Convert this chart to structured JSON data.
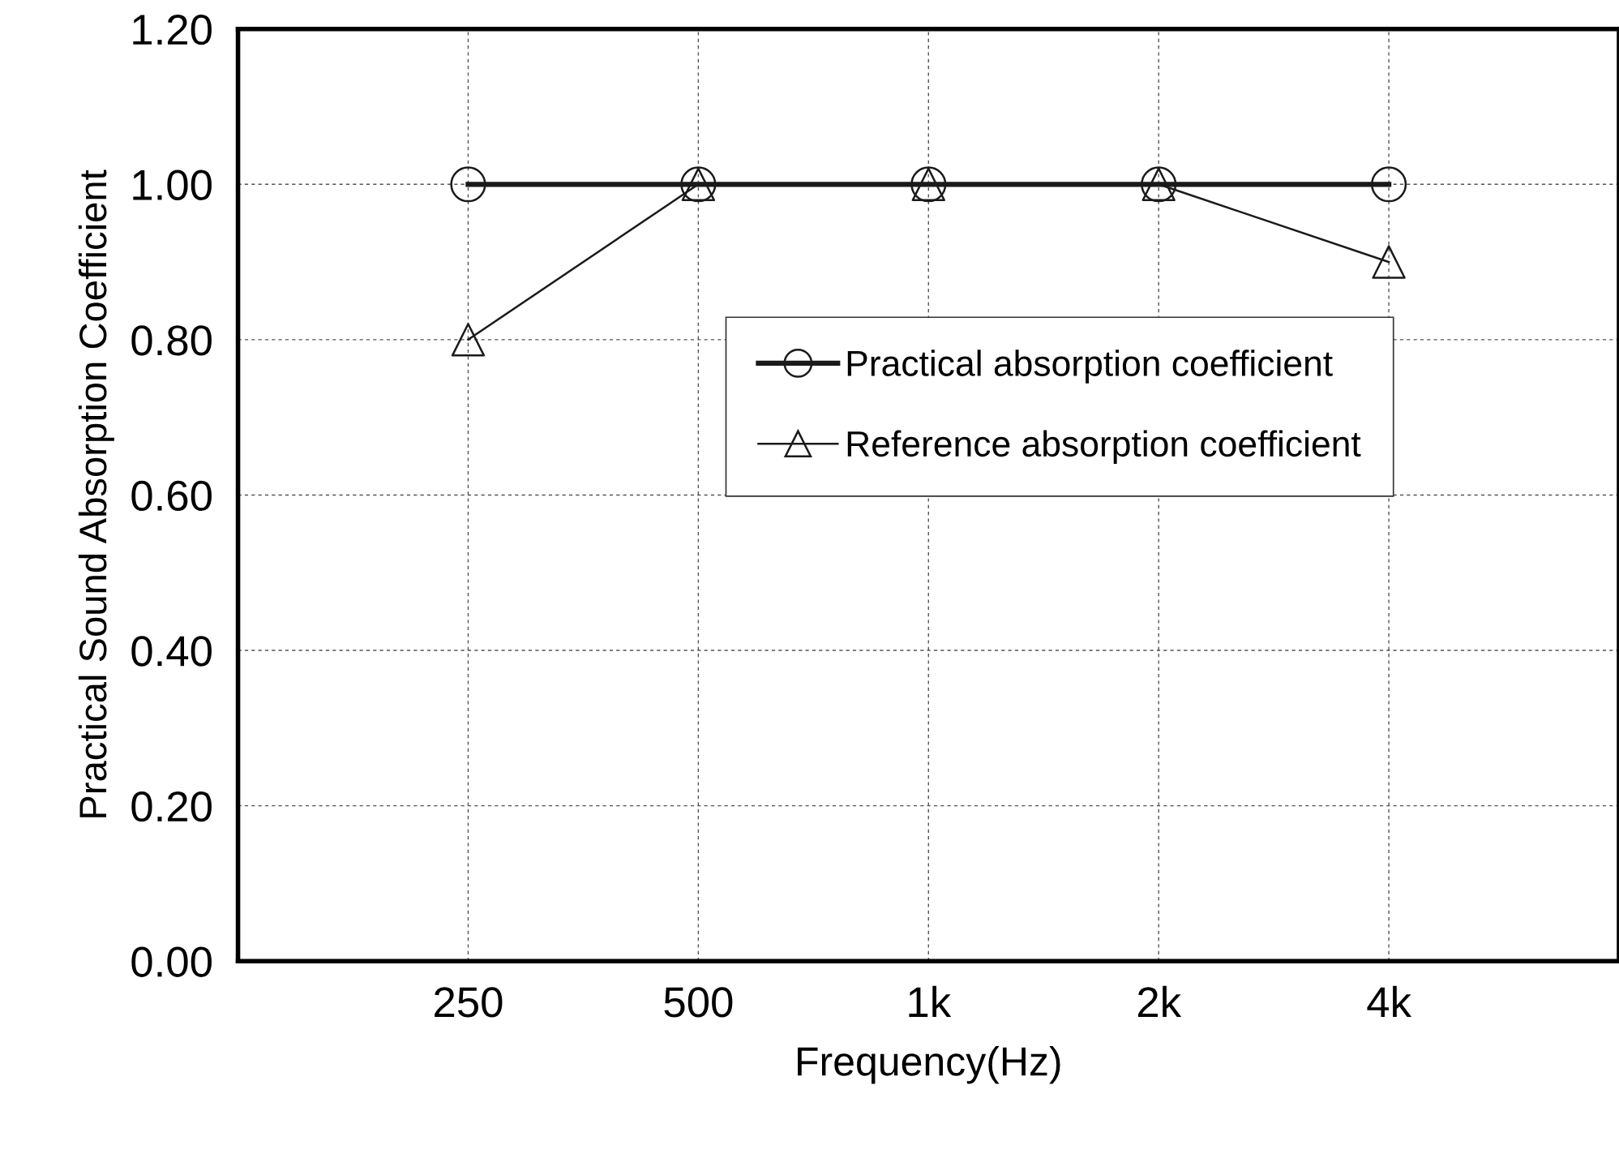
{
  "chart_data": {
    "type": "line",
    "xlabel": "Frequency(Hz)",
    "ylabel": "Practical Sound Absorption Coefficient",
    "categories": [
      "250",
      "500",
      "1k",
      "2k",
      "4k"
    ],
    "series": [
      {
        "name": "Practical absorption coefficient",
        "color": "#1a1a1a",
        "values": [
          1.0,
          1.0,
          1.0,
          1.0,
          1.0
        ],
        "marker": "circle"
      },
      {
        "name": "Reference absorption coefficient",
        "color": "#1a1a1a",
        "values": [
          0.8,
          1.0,
          1.0,
          1.0,
          0.9
        ],
        "marker": "triangle"
      }
    ],
    "ylim": [
      0,
      1.2
    ],
    "yticks": [
      {
        "value": 0,
        "label": "0.00"
      },
      {
        "value": 0.2,
        "label": "0.20"
      },
      {
        "value": 0.4,
        "label": "0.40"
      },
      {
        "value": 0.6,
        "label": "0.60"
      },
      {
        "value": 0.8,
        "label": "0.80"
      },
      {
        "value": 1.0,
        "label": "1.00"
      },
      {
        "value": 1.2,
        "label": "1.20"
      }
    ],
    "grid": true,
    "legend": "center",
    "line_style": "solid"
  }
}
